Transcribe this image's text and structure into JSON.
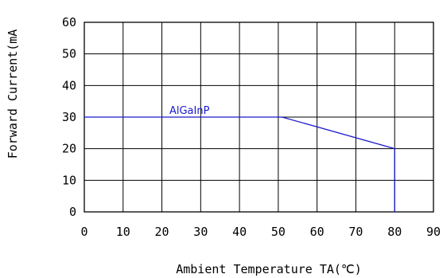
{
  "chart_data": {
    "type": "line",
    "xlabel": "Ambient Temperature TA(℃)",
    "ylabel": "Forward Current(mA",
    "xlim": [
      0,
      90
    ],
    "ylim": [
      0,
      60
    ],
    "x_ticks": [
      "0",
      "10",
      "20",
      "30",
      "40",
      "50",
      "60",
      "70",
      "80",
      "90"
    ],
    "y_ticks": [
      "0",
      "10",
      "20",
      "30",
      "40",
      "50",
      "60"
    ],
    "grid": true,
    "colors": {
      "series": "#1a1acc",
      "grid": "#000000"
    },
    "series": [
      {
        "name": "AlGaInP",
        "x": [
          0,
          51,
          80,
          80
        ],
        "y": [
          30,
          30,
          20,
          0
        ]
      }
    ]
  }
}
